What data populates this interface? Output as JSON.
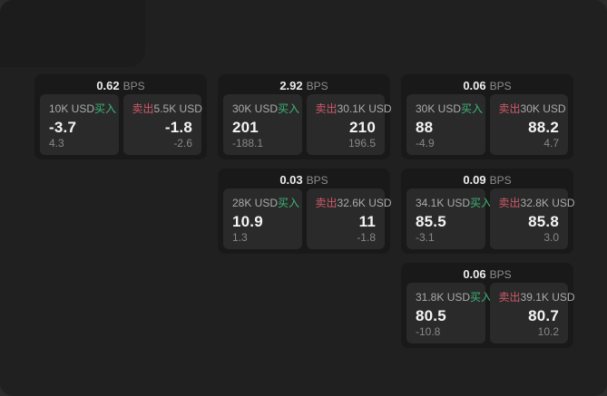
{
  "labels": {
    "bps_unit": "BPS",
    "buy": "买入",
    "sell": "卖出"
  },
  "colors": {
    "buy_accent": "#3eb575",
    "sell_accent": "#cf5968"
  },
  "cards": [
    {
      "bps": "0.62",
      "grid": {
        "row": 1,
        "col": 1
      },
      "buy": {
        "amount": "10K USD",
        "value": "-3.7",
        "sub_value": "4.3"
      },
      "sell": {
        "amount": "5.5K USD",
        "value": "-1.8",
        "sub_value": "-2.6"
      }
    },
    {
      "bps": "2.92",
      "grid": {
        "row": 1,
        "col": 2
      },
      "buy": {
        "amount": "30K USD",
        "value": "201",
        "sub_value": "-188.1"
      },
      "sell": {
        "amount": "30.1K USD",
        "value": "210",
        "sub_value": "196.5"
      }
    },
    {
      "bps": "0.06",
      "grid": {
        "row": 1,
        "col": 3
      },
      "buy": {
        "amount": "30K USD",
        "value": "88",
        "sub_value": "-4.9"
      },
      "sell": {
        "amount": "30K USD",
        "value": "88.2",
        "sub_value": "4.7"
      }
    },
    {
      "bps": "0.03",
      "grid": {
        "row": 2,
        "col": 2
      },
      "buy": {
        "amount": "28K USD",
        "value": "10.9",
        "sub_value": "1.3"
      },
      "sell": {
        "amount": "32.6K USD",
        "value": "11",
        "sub_value": "-1.8"
      }
    },
    {
      "bps": "0.09",
      "grid": {
        "row": 2,
        "col": 3
      },
      "buy": {
        "amount": "34.1K USD",
        "value": "85.5",
        "sub_value": "-3.1"
      },
      "sell": {
        "amount": "32.8K USD",
        "value": "85.8",
        "sub_value": "3.0"
      }
    },
    {
      "bps": "0.06",
      "grid": {
        "row": 3,
        "col": 3
      },
      "buy": {
        "amount": "31.8K USD",
        "value": "80.5",
        "sub_value": "-10.8"
      },
      "sell": {
        "amount": "39.1K USD",
        "value": "80.7",
        "sub_value": "10.2"
      }
    }
  ]
}
